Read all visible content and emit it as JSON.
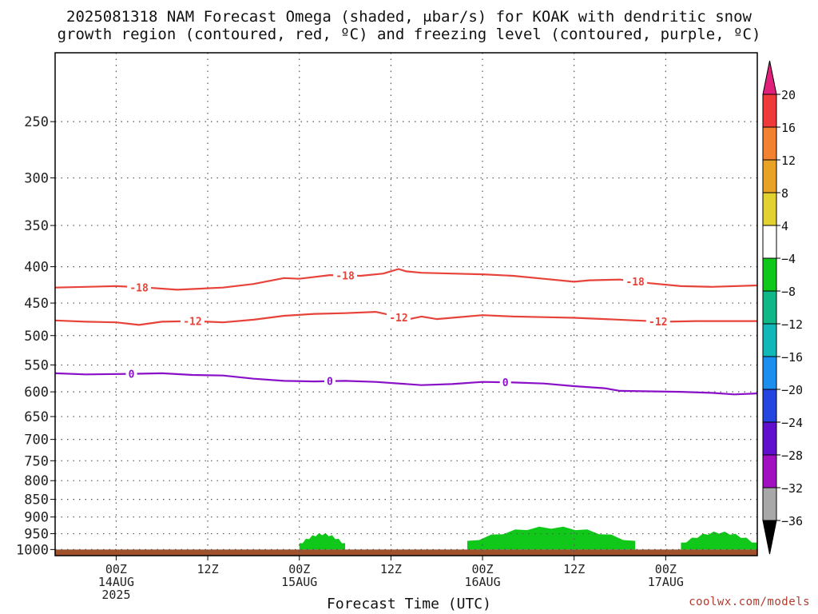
{
  "title": {
    "line1": "2025081318 NAM Forecast Omega (shaded, μbar/s) for KOAK with dendritic snow",
    "line2": "growth region (contoured, red, ºC) and freezing level (contoured, purple, ºC)"
  },
  "xlabel": "Forecast Time (UTC)",
  "watermark": "coolwx.com/models",
  "chart_data": {
    "type": "contour",
    "title": "2025081318 NAM Forecast Omega (shaded, μbar/s) for KOAK with dendritic snow growth region (contoured, red, ºC) and freezing level (contoured, purple, ºC)",
    "xlabel": "Forecast Time (UTC)",
    "ylabel": "",
    "x_range_hours": [
      -8,
      84
    ],
    "x_ticks": [
      {
        "hour": 0,
        "labels": [
          "00Z",
          "14AUG",
          "2025"
        ]
      },
      {
        "hour": 12,
        "labels": [
          "12Z"
        ]
      },
      {
        "hour": 24,
        "labels": [
          "00Z",
          "15AUG"
        ]
      },
      {
        "hour": 36,
        "labels": [
          "12Z"
        ]
      },
      {
        "hour": 48,
        "labels": [
          "00Z",
          "16AUG"
        ]
      },
      {
        "hour": 60,
        "labels": [
          "12Z"
        ]
      },
      {
        "hour": 72,
        "labels": [
          "00Z",
          "17AUG"
        ]
      }
    ],
    "y_scale": "log-pressure",
    "y_range_hpa": [
      1020,
      200
    ],
    "y_ticks": [
      250,
      300,
      350,
      400,
      450,
      500,
      550,
      600,
      650,
      700,
      750,
      800,
      850,
      900,
      950,
      1000
    ],
    "grid": true,
    "colorbar": {
      "labels": [
        "20",
        "16",
        "12",
        "8",
        "4",
        "−4",
        "−8",
        "−12",
        "−16",
        "−20",
        "−24",
        "−28",
        "−32",
        "−36"
      ],
      "bands": [
        {
          "color": "#ee3a3a"
        },
        {
          "color": "#f28130"
        },
        {
          "color": "#e8a326"
        },
        {
          "color": "#e2d231"
        },
        {
          "color": "#ffffff"
        },
        {
          "color": "#10c81a"
        },
        {
          "color": "#10b887"
        },
        {
          "color": "#12b8b8"
        },
        {
          "color": "#1c8ef0"
        },
        {
          "color": "#2445e0"
        },
        {
          "color": "#6010cc"
        },
        {
          "color": "#a010c0"
        },
        {
          "color": "#a8a8a8"
        }
      ],
      "top_arrow": "#e0207a",
      "bottom_arrow": "#000000"
    },
    "contours": [
      {
        "label": "-18",
        "color": "#e8433a",
        "label_hours": [
          3,
          30,
          68
        ],
        "points": [
          [
            -8,
            428
          ],
          [
            -4,
            427
          ],
          [
            0,
            426
          ],
          [
            4,
            428
          ],
          [
            8,
            431
          ],
          [
            10,
            430
          ],
          [
            14,
            428
          ],
          [
            18,
            423
          ],
          [
            22,
            415
          ],
          [
            24,
            416
          ],
          [
            28,
            411
          ],
          [
            32,
            412
          ],
          [
            35,
            409
          ],
          [
            37,
            403
          ],
          [
            38,
            406
          ],
          [
            40,
            408
          ],
          [
            44,
            409
          ],
          [
            48,
            410
          ],
          [
            52,
            412
          ],
          [
            56,
            416
          ],
          [
            60,
            420
          ],
          [
            62,
            418
          ],
          [
            66,
            417
          ],
          [
            70,
            422
          ],
          [
            74,
            426
          ],
          [
            78,
            427
          ],
          [
            84,
            425
          ]
        ]
      },
      {
        "label": "-12",
        "color": "#e8433a",
        "label_hours": [
          10,
          37,
          71
        ],
        "points": [
          [
            -8,
            476
          ],
          [
            -4,
            478
          ],
          [
            0,
            479
          ],
          [
            3,
            483
          ],
          [
            6,
            478
          ],
          [
            10,
            477
          ],
          [
            14,
            479
          ],
          [
            18,
            475
          ],
          [
            22,
            469
          ],
          [
            26,
            466
          ],
          [
            30,
            465
          ],
          [
            34,
            463
          ],
          [
            36,
            468
          ],
          [
            38,
            475
          ],
          [
            40,
            470
          ],
          [
            42,
            474
          ],
          [
            44,
            472
          ],
          [
            48,
            468
          ],
          [
            52,
            470
          ],
          [
            56,
            471
          ],
          [
            60,
            472
          ],
          [
            64,
            474
          ],
          [
            68,
            476
          ],
          [
            72,
            478
          ],
          [
            76,
            477
          ],
          [
            84,
            477
          ]
        ]
      },
      {
        "label": "0",
        "color": "#8a10c8",
        "label_hours": [
          2,
          28,
          51
        ],
        "points": [
          [
            -8,
            565
          ],
          [
            -4,
            567
          ],
          [
            2,
            566
          ],
          [
            6,
            565
          ],
          [
            10,
            568
          ],
          [
            14,
            569
          ],
          [
            18,
            575
          ],
          [
            22,
            579
          ],
          [
            26,
            580
          ],
          [
            30,
            579
          ],
          [
            34,
            581
          ],
          [
            40,
            587
          ],
          [
            44,
            585
          ],
          [
            48,
            581
          ],
          [
            52,
            582
          ],
          [
            56,
            584
          ],
          [
            60,
            589
          ],
          [
            64,
            593
          ],
          [
            66,
            598
          ],
          [
            70,
            599
          ],
          [
            74,
            600
          ],
          [
            78,
            602
          ],
          [
            81,
            605
          ],
          [
            84,
            603
          ]
        ]
      }
    ],
    "shaded_regions": [
      {
        "value_range": "-8 to -4",
        "color": "#10c81a",
        "hours": [
          24,
          30
        ],
        "pressure_hpa": [
          950,
          1000
        ]
      },
      {
        "value_range": "-8 to -4",
        "color": "#10c81a",
        "hours": [
          46,
          68
        ],
        "pressure_hpa": [
          930,
          1000
        ]
      },
      {
        "value_range": "-8 to -4",
        "color": "#10c81a",
        "hours": [
          74,
          84
        ],
        "pressure_hpa": [
          945,
          1000
        ]
      }
    ],
    "terrain": {
      "color": "#a0522d",
      "pressure_hpa": 1000
    }
  }
}
